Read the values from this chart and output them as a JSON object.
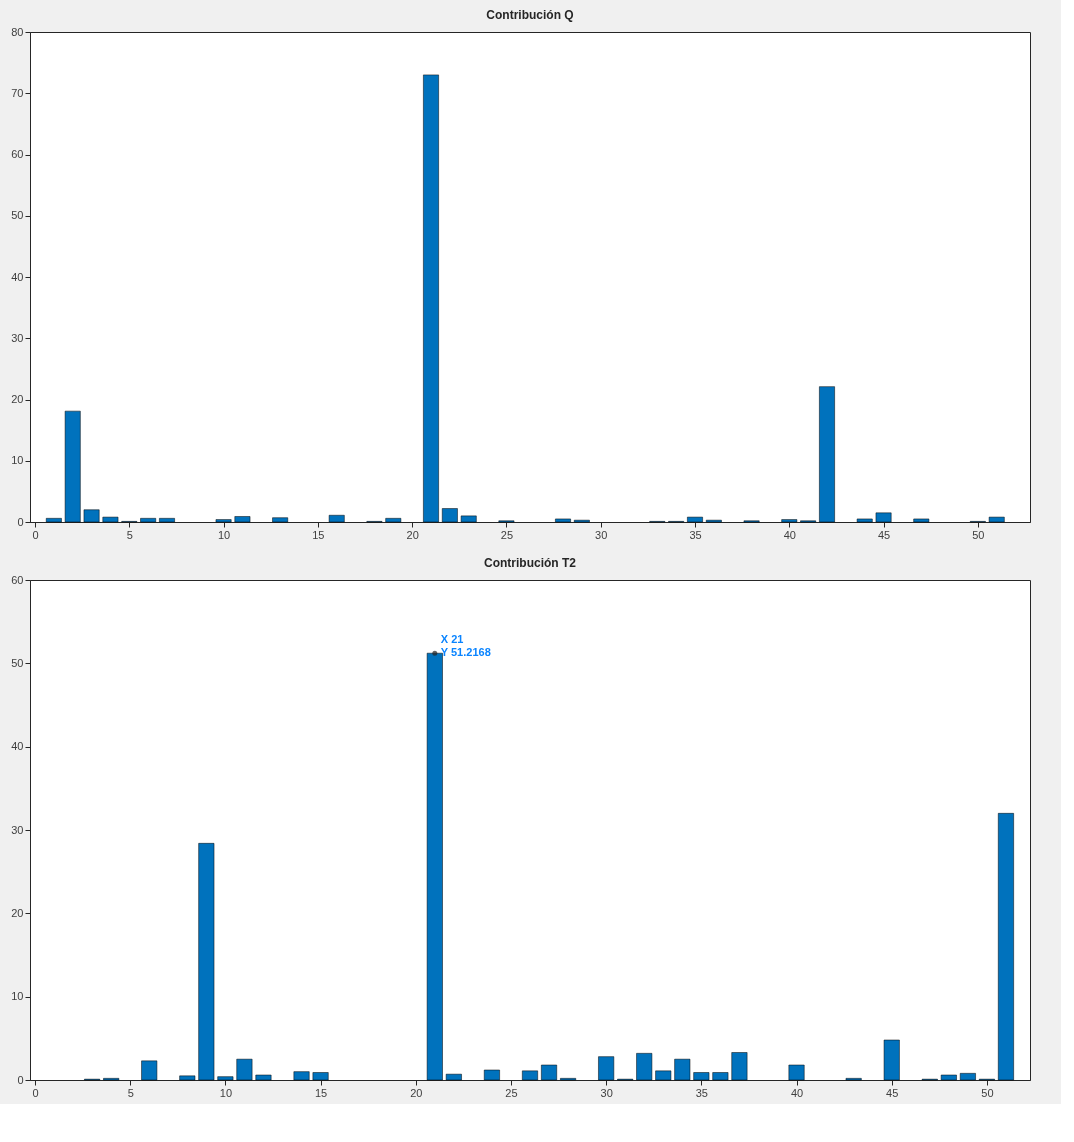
{
  "chart_data": [
    {
      "type": "bar",
      "title": "Contribución Q",
      "x": [
        1,
        2,
        3,
        4,
        5,
        6,
        7,
        10,
        11,
        13,
        16,
        18,
        19,
        21,
        22,
        23,
        25,
        28,
        29,
        33,
        34,
        35,
        36,
        38,
        40,
        41,
        42,
        44,
        45,
        47,
        50,
        51
      ],
      "series": [
        {
          "color": "#0072bd",
          "values": [
            0.6,
            18.1,
            2.0,
            0.8,
            0.1,
            0.6,
            0.6,
            0.4,
            0.9,
            0.7,
            1.1,
            0.1,
            0.6,
            73,
            2.2,
            1.0,
            0.2,
            0.5,
            0.3,
            0.1,
            0.1,
            0.8,
            0.3,
            0.2,
            0.4,
            0.2,
            22.1,
            0.5,
            1.5,
            0.5,
            0.1,
            0.8
          ]
        }
      ],
      "xlim": [
        0,
        52.5
      ],
      "xticks": [
        0,
        5,
        10,
        15,
        20,
        25,
        30,
        35,
        40,
        45,
        50
      ],
      "ylim": [
        0,
        80
      ],
      "yticks": [
        0,
        10,
        20,
        30,
        40,
        50,
        60,
        70,
        80
      ],
      "grid": false
    },
    {
      "type": "bar",
      "title": "Contribución T2",
      "x": [
        3,
        4,
        6,
        8,
        9,
        10,
        11,
        12,
        14,
        15,
        21,
        22,
        24,
        26,
        27,
        28,
        30,
        31,
        32,
        33,
        34,
        35,
        36,
        37,
        40,
        43,
        45,
        47,
        48,
        49,
        50,
        51
      ],
      "series": [
        {
          "color": "#0072bd",
          "values": [
            0.1,
            0.2,
            2.3,
            0.5,
            28.4,
            0.4,
            2.5,
            0.6,
            1.0,
            0.9,
            51.2168,
            0.7,
            1.2,
            1.1,
            1.8,
            0.2,
            2.8,
            0.1,
            3.2,
            1.1,
            2.5,
            0.9,
            0.9,
            3.3,
            1.8,
            0.2,
            4.8,
            0.1,
            0.6,
            0.8,
            0.1,
            32.0
          ]
        }
      ],
      "annotations": [
        {
          "text": "X 21\nY 51.2168",
          "x": 21,
          "y": 51.2168
        }
      ],
      "xlim": [
        0,
        52
      ],
      "xticks": [
        0,
        5,
        10,
        15,
        20,
        25,
        30,
        35,
        40,
        45,
        50
      ],
      "ylim": [
        0,
        60
      ],
      "yticks": [
        0,
        10,
        20,
        30,
        40,
        50,
        60
      ],
      "grid": false
    }
  ]
}
